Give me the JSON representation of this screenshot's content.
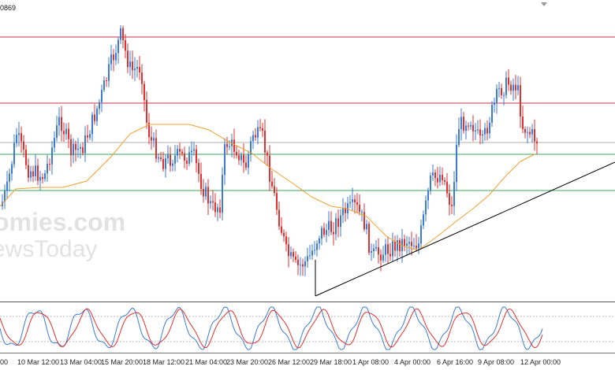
{
  "symbol": {
    "price_fragment": "0869"
  },
  "watermark": {
    "brand_line1": "omies.com",
    "brand_line2": "ewsToday"
  },
  "time_axis": {
    "labels": [
      "00",
      "10 Mar 12:00",
      "13 Mar 04:00",
      "15 Mar 20:00",
      "18 Mar 12:00",
      "21 Mar 04:00",
      "23 Mar 20:00",
      "26 Mar 12:00",
      "29 Mar 18:00",
      "1 Apr 08:00",
      "4 Apr 00:00",
      "6 Apr 16:00",
      "9 Apr 08:00",
      "12 Apr 00:00"
    ]
  },
  "colors": {
    "bull_candle": "#3a7bd5",
    "bear_candle": "#e03030",
    "resistance": "#c8324a",
    "support": "#3aa55a",
    "current_price": "#b0b0b0",
    "moving_average": "#f0a030",
    "trendline": "#000000",
    "stoch_k": "#3a7bd5",
    "stoch_d": "#e03030"
  },
  "icons": {
    "scroll_marker": "triangle-down-icon"
  }
}
